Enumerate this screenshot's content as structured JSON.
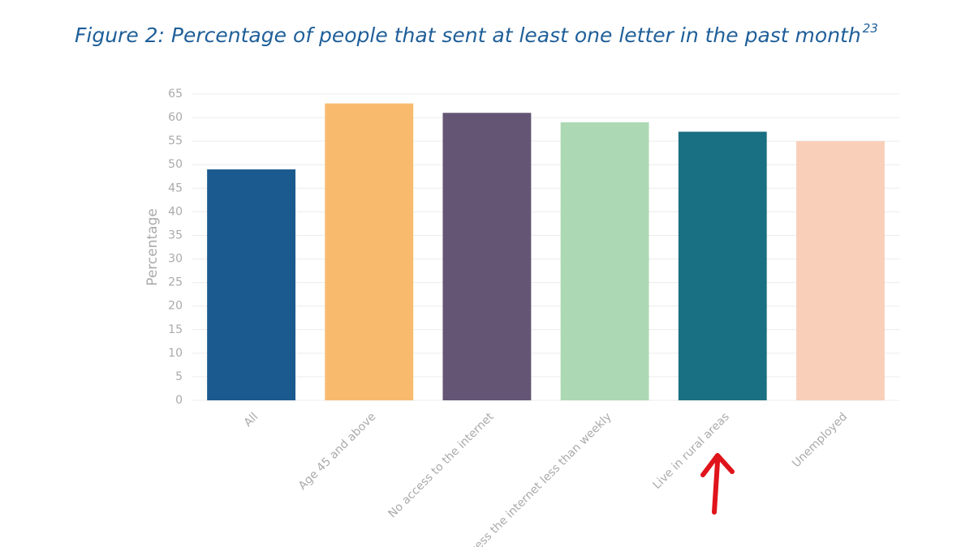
{
  "chart_data": {
    "type": "bar",
    "title": "Figure 2: Percentage of people that sent at least one letter in the past month",
    "title_superscript": "23",
    "y_label": "Percentage",
    "categories": [
      "All",
      "Age 45 and above",
      "No access to the internet",
      "Access the internet less than weekly",
      "Live in rural areas",
      "Unemployed"
    ],
    "values": [
      49,
      63,
      61,
      59,
      57,
      55
    ],
    "colors": [
      "#1b5a8e",
      "#f8bb6e",
      "#645574",
      "#acd9b3",
      "#1a7083",
      "#f9cfba"
    ],
    "ylim": [
      0,
      65
    ],
    "yticks": [
      0,
      5,
      10,
      15,
      20,
      25,
      30,
      35,
      40,
      45,
      50,
      55,
      60,
      65
    ],
    "grid": true
  }
}
